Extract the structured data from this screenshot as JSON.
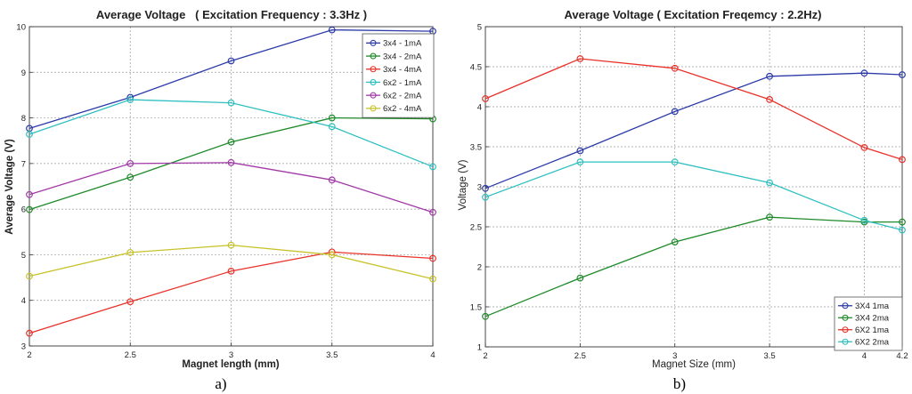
{
  "chart_data": [
    {
      "type": "line",
      "title": "Average Voltage   ( Excitation Frequency : 3.3Hz )",
      "xlabel": "Magnet length (mm)",
      "ylabel": "Average Voltage (V)",
      "xlim": [
        2,
        4
      ],
      "ylim": [
        3,
        10
      ],
      "grid": true,
      "legend": "top-right",
      "caption": "a)",
      "x": [
        2,
        2.5,
        3,
        3.5,
        4
      ],
      "xticks": [
        "2",
        "2.5",
        "3",
        "3.5",
        "4"
      ],
      "yticks": [
        "3",
        "4",
        "5",
        "6",
        "7",
        "8",
        "9",
        "10"
      ],
      "series": [
        {
          "name": "3x4 - 1mA",
          "color": "#2b3aa8",
          "values": [
            7.77,
            8.45,
            9.25,
            9.93,
            9.9
          ]
        },
        {
          "name": "3x4 - 2mA",
          "color": "#1f8a2a",
          "values": [
            5.99,
            6.7,
            7.47,
            8.0,
            7.98
          ]
        },
        {
          "name": "3x4 - 4mA",
          "color": "#e8322a",
          "values": [
            3.28,
            3.97,
            4.64,
            5.06,
            4.92
          ]
        },
        {
          "name": "6x2 - 1mA",
          "color": "#2fbfc0",
          "values": [
            7.64,
            8.4,
            8.33,
            7.81,
            6.93
          ]
        },
        {
          "name": "6x2 - 2mA",
          "color": "#a23aa8",
          "values": [
            6.32,
            7.0,
            7.02,
            6.64,
            5.93
          ]
        },
        {
          "name": "6x2 - 4mA",
          "color": "#c8c22a",
          "values": [
            4.53,
            5.05,
            5.21,
            5.0,
            4.47
          ]
        }
      ]
    },
    {
      "type": "line",
      "title": "Average Voltage ( Excitation Freqemcy : 2.2Hz)",
      "xlabel": "Magnet Size (mm)",
      "ylabel": "Voltage (V)",
      "xlim": [
        2,
        4.2
      ],
      "ylim": [
        1,
        5
      ],
      "grid": true,
      "legend": "bottom-right",
      "caption": "b)",
      "x": [
        2,
        2.5,
        3,
        3.5,
        4,
        4.2
      ],
      "xticks": [
        "2",
        "2.5",
        "3",
        "3.5",
        "4",
        "4.2"
      ],
      "yticks": [
        "1",
        "1.5",
        "2",
        "2.5",
        "3",
        "3.5",
        "4",
        "4.5",
        "5"
      ],
      "series": [
        {
          "name": "3X4 1ma",
          "color": "#2b3aa8",
          "values": [
            2.98,
            3.45,
            3.94,
            4.38,
            4.42,
            4.4
          ]
        },
        {
          "name": "3X4 2ma",
          "color": "#1f8a2a",
          "values": [
            1.38,
            1.86,
            2.31,
            2.62,
            2.56,
            2.56
          ]
        },
        {
          "name": "6X2 1ma",
          "color": "#e8322a",
          "values": [
            4.1,
            4.6,
            4.48,
            4.09,
            3.49,
            3.34
          ]
        },
        {
          "name": "6X2 2ma",
          "color": "#2fbfc0",
          "values": [
            2.87,
            3.31,
            3.31,
            3.05,
            2.58,
            2.46
          ]
        }
      ]
    }
  ]
}
